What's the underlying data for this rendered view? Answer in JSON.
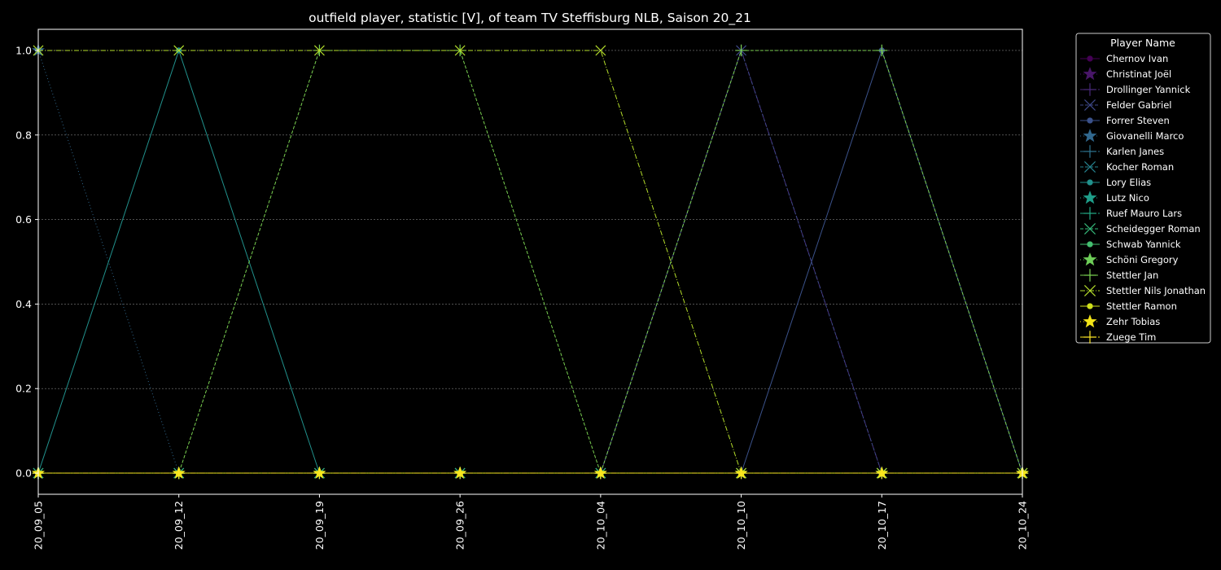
{
  "chart_data": {
    "type": "line",
    "title": "outfield player, statistic [V], of team TV Steffisburg NLB, Saison 20_21",
    "xlabel": "",
    "ylabel": "",
    "x": [
      "20_09_05",
      "20_09_12",
      "20_09_19",
      "20_09_26",
      "20_10_04",
      "20_10_10",
      "20_10_17",
      "20_10_24"
    ],
    "yticks": [
      "0.0",
      "0.2",
      "0.4",
      "0.6",
      "0.8",
      "1.0"
    ],
    "ylim": [
      -0.05,
      1.05
    ],
    "grid": "horizontal dotted",
    "legend_title": "Player Name",
    "legend_placement": "outside right",
    "series": [
      {
        "name": "Chernov Ivan",
        "color": "#440154",
        "marker": "circle",
        "dash": "solid",
        "values": [
          0,
          0,
          0,
          0,
          0,
          0,
          0,
          0
        ]
      },
      {
        "name": "Christinat Joël",
        "color": "#481668",
        "marker": "star",
        "dash": "dotted",
        "values": [
          0,
          0,
          0,
          0,
          0,
          0,
          0,
          0
        ]
      },
      {
        "name": "Drollinger Yannick",
        "color": "#482878",
        "marker": "plus",
        "dash": "dashdot",
        "values": [
          0,
          0,
          0,
          0,
          0,
          1,
          0,
          0
        ]
      },
      {
        "name": "Felder Gabriel",
        "color": "#3e4989",
        "marker": "x",
        "dash": "dashed",
        "values": [
          0,
          0,
          0,
          0,
          0,
          1,
          0,
          0
        ]
      },
      {
        "name": "Forrer Steven",
        "color": "#3b528b",
        "marker": "circle",
        "dash": "solid",
        "values": [
          0,
          0,
          0,
          0,
          0,
          0,
          1,
          0
        ]
      },
      {
        "name": "Giovanelli Marco",
        "color": "#31688e",
        "marker": "star",
        "dash": "dotted",
        "values": [
          1,
          0,
          0,
          0,
          0,
          0,
          0,
          0
        ]
      },
      {
        "name": "Karlen Janes",
        "color": "#2c728e",
        "marker": "plus",
        "dash": "dashdot",
        "values": [
          0,
          0,
          0,
          0,
          0,
          0,
          0,
          0
        ]
      },
      {
        "name": "Kocher Roman",
        "color": "#26828e",
        "marker": "x",
        "dash": "dashed",
        "values": [
          0,
          0,
          0,
          0,
          0,
          0,
          0,
          0
        ]
      },
      {
        "name": "Lory Elias",
        "color": "#21918c",
        "marker": "circle",
        "dash": "solid",
        "values": [
          0,
          1,
          0,
          0,
          0,
          0,
          0,
          0
        ]
      },
      {
        "name": "Lutz Nico",
        "color": "#1f9e89",
        "marker": "star",
        "dash": "dotted",
        "values": [
          0,
          0,
          0,
          0,
          0,
          0,
          0,
          0
        ]
      },
      {
        "name": "Ruef Mauro Lars",
        "color": "#22a884",
        "marker": "plus",
        "dash": "dashdot",
        "values": [
          0,
          0,
          0,
          0,
          0,
          0,
          0,
          0
        ]
      },
      {
        "name": "Scheidegger Roman",
        "color": "#35b779",
        "marker": "x",
        "dash": "dashed",
        "values": [
          0,
          0,
          0,
          0,
          0,
          0,
          0,
          0
        ]
      },
      {
        "name": "Schwab Yannick",
        "color": "#44bf70",
        "marker": "circle",
        "dash": "solid",
        "values": [
          0,
          0,
          0,
          0,
          0,
          0,
          0,
          0
        ]
      },
      {
        "name": "Schöni Gregory",
        "color": "#6ece58",
        "marker": "star",
        "dash": "dotted",
        "values": [
          0,
          0,
          0,
          0,
          0,
          0,
          0,
          0
        ]
      },
      {
        "name": "Stettler Jan",
        "color": "#7ad151",
        "marker": "plus",
        "dash": "dashed",
        "values": [
          0,
          0,
          1,
          1,
          0,
          1,
          1,
          0
        ]
      },
      {
        "name": "Stettler Nils Jonathan",
        "color": "#b5de2b",
        "marker": "x",
        "dash": "dashdot",
        "values": [
          1,
          1,
          1,
          1,
          1,
          0,
          0,
          0
        ]
      },
      {
        "name": "Stettler Ramon",
        "color": "#d0e11c",
        "marker": "circle",
        "dash": "solid",
        "values": [
          0,
          0,
          0,
          0,
          0,
          0,
          0,
          0
        ]
      },
      {
        "name": "Zehr Tobias",
        "color": "#f3e418",
        "marker": "star",
        "dash": "dotted",
        "values": [
          0,
          0,
          0,
          0,
          0,
          0,
          0,
          0
        ]
      },
      {
        "name": "Zuege Tim",
        "color": "#fde725",
        "marker": "plus",
        "dash": "dashdot",
        "values": [
          0,
          0,
          0,
          0,
          0,
          0,
          0,
          0
        ]
      }
    ]
  }
}
